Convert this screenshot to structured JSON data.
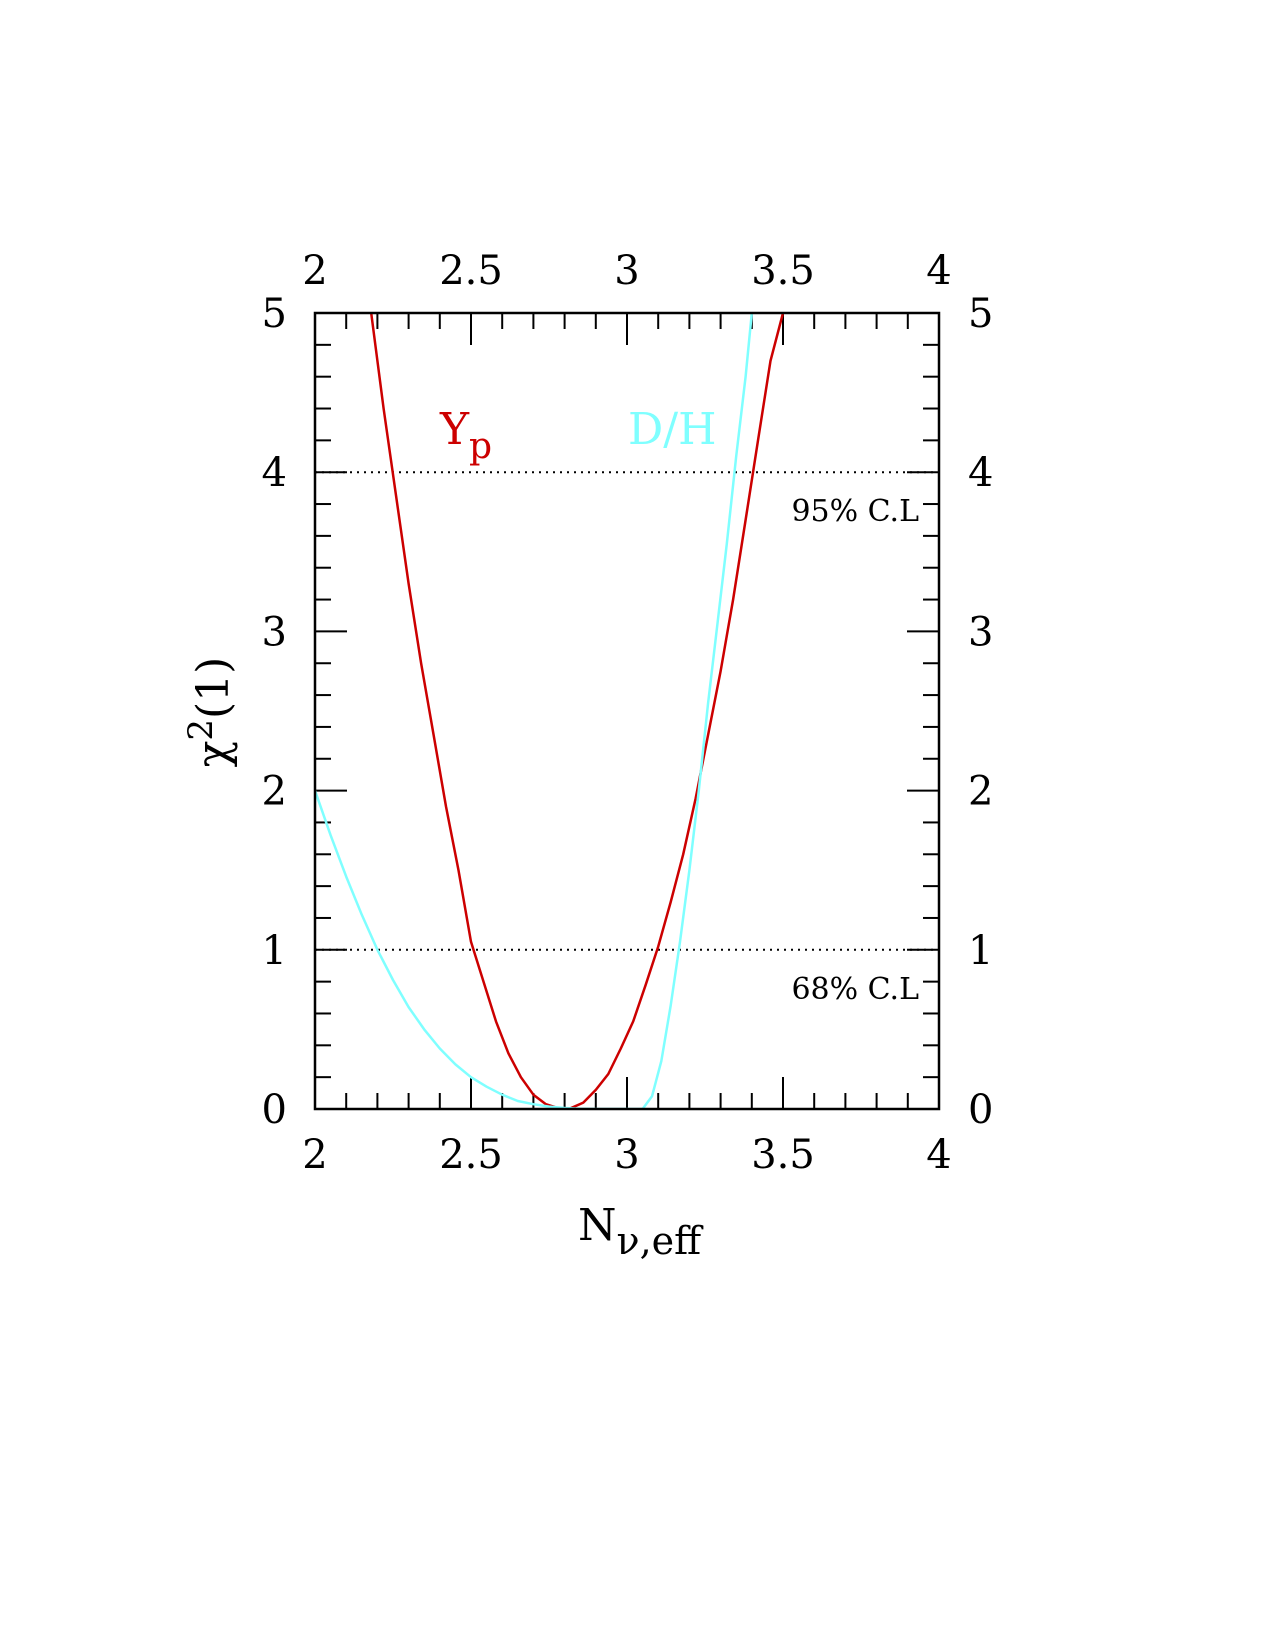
{
  "chart_data": {
    "type": "line",
    "xlabel": {
      "main": "N",
      "sub": "ν,eff"
    },
    "ylabel": {
      "main": "χ",
      "sup": "2",
      "rest": "(1)"
    },
    "xlim": [
      2,
      4
    ],
    "ylim": [
      0,
      5
    ],
    "x_major_ticks": [
      2,
      2.5,
      3,
      3.5,
      4
    ],
    "x_tick_labels": [
      "2",
      "2.5",
      "3",
      "3.5",
      "4"
    ],
    "y_major_ticks": [
      0,
      1,
      2,
      3,
      4,
      5
    ],
    "y_tick_labels": [
      "0",
      "1",
      "2",
      "3",
      "4",
      "5"
    ],
    "x_minor_step": 0.1,
    "y_minor_step": 0.2,
    "grid": false,
    "reference_lines": [
      {
        "y": 4,
        "label": "95% C.L",
        "style": "dotted"
      },
      {
        "y": 1,
        "label": "68% C.L",
        "style": "dotted"
      }
    ],
    "series": [
      {
        "name": "Yp",
        "label_main": "Y",
        "label_sub": "p",
        "color": "#cc0000",
        "x": [
          2.18,
          2.22,
          2.26,
          2.3,
          2.34,
          2.38,
          2.42,
          2.46,
          2.5,
          2.54,
          2.58,
          2.62,
          2.66,
          2.7,
          2.74,
          2.78,
          2.8,
          2.82,
          2.86,
          2.9,
          2.94,
          2.98,
          3.02,
          3.06,
          3.1,
          3.14,
          3.18,
          3.22,
          3.26,
          3.3,
          3.34,
          3.38,
          3.42,
          3.46,
          3.5
        ],
        "y": [
          5.0,
          4.4,
          3.85,
          3.3,
          2.8,
          2.35,
          1.9,
          1.5,
          1.05,
          0.8,
          0.55,
          0.35,
          0.2,
          0.09,
          0.03,
          0.005,
          0.0,
          0.005,
          0.04,
          0.12,
          0.22,
          0.38,
          0.55,
          0.78,
          1.02,
          1.3,
          1.6,
          1.95,
          2.35,
          2.75,
          3.2,
          3.7,
          4.2,
          4.7,
          5.0
        ]
      },
      {
        "name": "D/H",
        "label_main": "D/H",
        "label_sub": "",
        "color": "#7fffff",
        "x": [
          2.0,
          2.05,
          2.1,
          2.15,
          2.2,
          2.25,
          2.3,
          2.35,
          2.4,
          2.45,
          2.5,
          2.55,
          2.6,
          2.65,
          2.7,
          2.75,
          2.8,
          2.85,
          2.9,
          2.95,
          3.0,
          3.05,
          3.08,
          3.11,
          3.14,
          3.17,
          3.2,
          3.23,
          3.26,
          3.29,
          3.32,
          3.35,
          3.38,
          3.4
        ],
        "y": [
          2.0,
          1.72,
          1.46,
          1.22,
          1.0,
          0.81,
          0.64,
          0.5,
          0.38,
          0.28,
          0.2,
          0.14,
          0.09,
          0.05,
          0.03,
          0.015,
          0.006,
          0.002,
          0.0,
          0.0,
          0.0,
          0.0,
          0.08,
          0.3,
          0.65,
          1.05,
          1.5,
          2.0,
          2.55,
          3.05,
          3.55,
          4.1,
          4.6,
          5.0
        ]
      }
    ]
  }
}
